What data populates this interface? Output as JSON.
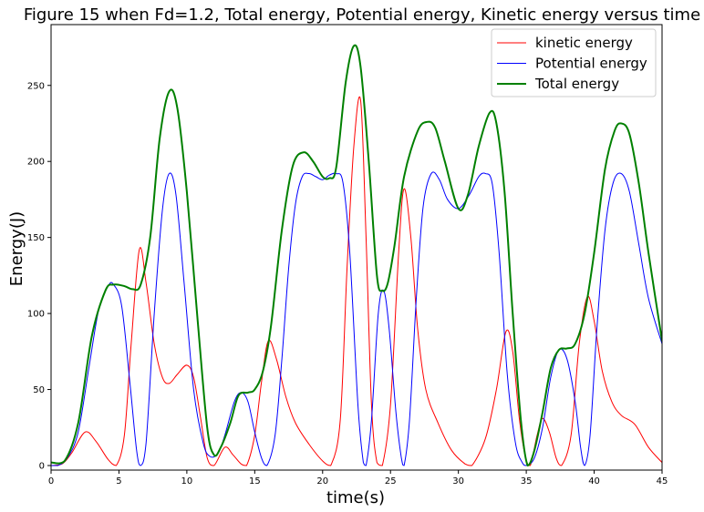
{
  "chart_data": {
    "type": "line",
    "title": "Figure 15 when Fd=1.2, Total energy, Potential energy, Kinetic energy versus time",
    "xlabel": "time(s)",
    "ylabel": "Energy(J)",
    "xlim": [
      0,
      45
    ],
    "ylim": [
      -3,
      290
    ],
    "xticks": [
      0,
      5,
      10,
      15,
      20,
      25,
      30,
      35,
      40,
      45
    ],
    "yticks": [
      0,
      50,
      100,
      150,
      200,
      250
    ],
    "grid": false,
    "legend_position": "top-right",
    "series": [
      {
        "name": "kinetic energy",
        "color": "#ff0000",
        "line_width": 1,
        "points": [
          [
            0,
            0
          ],
          [
            0.8,
            1
          ],
          [
            1.5,
            8
          ],
          [
            2.5,
            22
          ],
          [
            3.3,
            16
          ],
          [
            4.2,
            4
          ],
          [
            4.8,
            0
          ],
          [
            5.4,
            20
          ],
          [
            5.9,
            80
          ],
          [
            6.5,
            142
          ],
          [
            7.0,
            120
          ],
          [
            7.6,
            80
          ],
          [
            8.2,
            58
          ],
          [
            8.7,
            54
          ],
          [
            9.3,
            60
          ],
          [
            10.0,
            66
          ],
          [
            10.5,
            58
          ],
          [
            11.0,
            32
          ],
          [
            11.5,
            5
          ],
          [
            12.0,
            0
          ],
          [
            12.8,
            12
          ],
          [
            13.4,
            7
          ],
          [
            14.0,
            1
          ],
          [
            14.4,
            0
          ],
          [
            15.0,
            20
          ],
          [
            15.5,
            55
          ],
          [
            16.0,
            82
          ],
          [
            16.6,
            70
          ],
          [
            17.3,
            45
          ],
          [
            18.0,
            28
          ],
          [
            19.0,
            14
          ],
          [
            20.0,
            3
          ],
          [
            20.6,
            0
          ],
          [
            21.3,
            30
          ],
          [
            21.8,
            130
          ],
          [
            22.3,
            210
          ],
          [
            22.8,
            240
          ],
          [
            23.2,
            150
          ],
          [
            23.6,
            40
          ],
          [
            24.0,
            2
          ],
          [
            24.4,
            0
          ],
          [
            25.0,
            40
          ],
          [
            25.6,
            140
          ],
          [
            26.0,
            182
          ],
          [
            26.5,
            150
          ],
          [
            27.0,
            90
          ],
          [
            27.6,
            50
          ],
          [
            28.5,
            28
          ],
          [
            29.5,
            10
          ],
          [
            30.5,
            1
          ],
          [
            31.0,
            0
          ],
          [
            32.0,
            18
          ],
          [
            32.8,
            50
          ],
          [
            33.5,
            88
          ],
          [
            34.0,
            75
          ],
          [
            34.5,
            30
          ],
          [
            35.0,
            3
          ],
          [
            35.3,
            0
          ],
          [
            35.8,
            20
          ],
          [
            36.2,
            31
          ],
          [
            36.7,
            22
          ],
          [
            37.2,
            5
          ],
          [
            37.6,
            0
          ],
          [
            38.3,
            20
          ],
          [
            38.9,
            80
          ],
          [
            39.5,
            111
          ],
          [
            40.0,
            95
          ],
          [
            40.6,
            62
          ],
          [
            41.3,
            42
          ],
          [
            42.0,
            33
          ],
          [
            43.0,
            27
          ],
          [
            44.0,
            12
          ],
          [
            45.0,
            2
          ]
        ]
      },
      {
        "name": "Potential energy",
        "color": "#0000ff",
        "line_width": 1,
        "points": [
          [
            0,
            0
          ],
          [
            0.5,
            0
          ],
          [
            1.2,
            5
          ],
          [
            2.0,
            22
          ],
          [
            2.8,
            65
          ],
          [
            3.5,
            102
          ],
          [
            4.2,
            118
          ],
          [
            4.6,
            119
          ],
          [
            5.2,
            105
          ],
          [
            5.8,
            55
          ],
          [
            6.3,
            10
          ],
          [
            6.6,
            0
          ],
          [
            7.0,
            15
          ],
          [
            7.6,
            100
          ],
          [
            8.2,
            168
          ],
          [
            8.7,
            192
          ],
          [
            9.2,
            178
          ],
          [
            9.8,
            120
          ],
          [
            10.5,
            50
          ],
          [
            11.2,
            15
          ],
          [
            11.7,
            6
          ],
          [
            12.3,
            8
          ],
          [
            12.8,
            20
          ],
          [
            13.5,
            42
          ],
          [
            14.0,
            48
          ],
          [
            14.5,
            42
          ],
          [
            15.0,
            22
          ],
          [
            15.5,
            5
          ],
          [
            15.9,
            0
          ],
          [
            16.5,
            20
          ],
          [
            17.0,
            70
          ],
          [
            17.5,
            130
          ],
          [
            18.0,
            172
          ],
          [
            18.5,
            190
          ],
          [
            19.0,
            192
          ],
          [
            19.5,
            190
          ],
          [
            20.0,
            188
          ],
          [
            20.5,
            191
          ],
          [
            21.0,
            192
          ],
          [
            21.5,
            186
          ],
          [
            22.0,
            140
          ],
          [
            22.6,
            40
          ],
          [
            23.0,
            2
          ],
          [
            23.2,
            0
          ],
          [
            23.6,
            30
          ],
          [
            24.1,
            100
          ],
          [
            24.5,
            115
          ],
          [
            24.9,
            90
          ],
          [
            25.4,
            35
          ],
          [
            25.8,
            5
          ],
          [
            26.0,
            0
          ],
          [
            26.4,
            30
          ],
          [
            26.9,
            110
          ],
          [
            27.4,
            170
          ],
          [
            28.0,
            192
          ],
          [
            28.6,
            188
          ],
          [
            29.2,
            175
          ],
          [
            30.0,
            169
          ],
          [
            30.8,
            178
          ],
          [
            31.5,
            190
          ],
          [
            32.0,
            192
          ],
          [
            32.5,
            185
          ],
          [
            33.0,
            140
          ],
          [
            33.6,
            60
          ],
          [
            34.2,
            15
          ],
          [
            34.7,
            2
          ],
          [
            35.0,
            0
          ],
          [
            35.6,
            5
          ],
          [
            36.2,
            25
          ],
          [
            36.8,
            58
          ],
          [
            37.4,
            76
          ],
          [
            38.0,
            70
          ],
          [
            38.6,
            42
          ],
          [
            39.0,
            12
          ],
          [
            39.3,
            0
          ],
          [
            39.7,
            20
          ],
          [
            40.2,
            90
          ],
          [
            40.8,
            155
          ],
          [
            41.4,
            186
          ],
          [
            42.0,
            192
          ],
          [
            42.6,
            180
          ],
          [
            43.3,
            145
          ],
          [
            44.0,
            110
          ],
          [
            45.0,
            80
          ]
        ]
      },
      {
        "name": "Total energy",
        "color": "#008000",
        "line_width": 2,
        "points": [
          [
            0,
            2
          ],
          [
            1.0,
            3
          ],
          [
            2.0,
            28
          ],
          [
            3.0,
            85
          ],
          [
            4.0,
            115
          ],
          [
            4.6,
            119
          ],
          [
            5.4,
            118
          ],
          [
            6.0,
            116
          ],
          [
            6.6,
            119
          ],
          [
            7.3,
            150
          ],
          [
            8.0,
            215
          ],
          [
            8.7,
            246
          ],
          [
            9.3,
            235
          ],
          [
            10.0,
            180
          ],
          [
            10.8,
            95
          ],
          [
            11.5,
            25
          ],
          [
            12.0,
            7
          ],
          [
            12.5,
            12
          ],
          [
            13.2,
            28
          ],
          [
            13.8,
            46
          ],
          [
            14.5,
            48
          ],
          [
            15.0,
            50
          ],
          [
            15.6,
            62
          ],
          [
            16.2,
            92
          ],
          [
            17.0,
            155
          ],
          [
            17.8,
            197
          ],
          [
            18.6,
            206
          ],
          [
            19.3,
            200
          ],
          [
            20.0,
            190
          ],
          [
            20.5,
            189
          ],
          [
            21.0,
            196
          ],
          [
            21.7,
            252
          ],
          [
            22.3,
            276
          ],
          [
            22.8,
            262
          ],
          [
            23.4,
            200
          ],
          [
            24.0,
            125
          ],
          [
            24.4,
            115
          ],
          [
            24.8,
            120
          ],
          [
            25.3,
            145
          ],
          [
            26.0,
            190
          ],
          [
            27.0,
            220
          ],
          [
            27.7,
            226
          ],
          [
            28.3,
            222
          ],
          [
            29.0,
            200
          ],
          [
            30.0,
            169
          ],
          [
            30.7,
            178
          ],
          [
            31.5,
            210
          ],
          [
            32.3,
            232
          ],
          [
            32.8,
            225
          ],
          [
            33.4,
            180
          ],
          [
            34.0,
            100
          ],
          [
            34.6,
            30
          ],
          [
            35.1,
            0
          ],
          [
            35.6,
            10
          ],
          [
            36.2,
            35
          ],
          [
            36.8,
            64
          ],
          [
            37.4,
            76
          ],
          [
            38.0,
            77
          ],
          [
            38.6,
            80
          ],
          [
            39.3,
            100
          ],
          [
            40.0,
            140
          ],
          [
            40.8,
            195
          ],
          [
            41.5,
            220
          ],
          [
            42.0,
            225
          ],
          [
            42.6,
            218
          ],
          [
            43.3,
            185
          ],
          [
            44.0,
            140
          ],
          [
            45.0,
            82
          ]
        ]
      }
    ]
  }
}
